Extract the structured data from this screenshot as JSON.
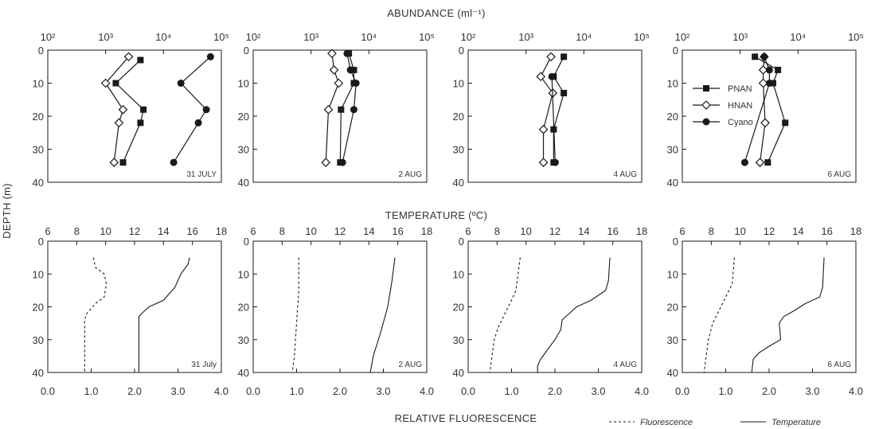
{
  "figure": {
    "abundance_title": "ABUNDANCE (ml⁻¹)",
    "temperature_title": "TEMPERATURE (ºC)",
    "fluorescence_title": "RELATIVE FLUORESCENCE",
    "depth_title": "DEPTH (m)"
  },
  "legend_abundance": [
    {
      "name": "PNAN",
      "marker": "square-filled"
    },
    {
      "name": "HNAN",
      "marker": "diamond-open"
    },
    {
      "name": "Cyano",
      "marker": "circle-filled"
    }
  ],
  "legend_profiles": [
    {
      "name": "Fluorescence",
      "style": "dashed"
    },
    {
      "name": "Temperature",
      "style": "solid"
    }
  ],
  "chart_data": [
    {
      "type": "scatter",
      "title": "31 JULY",
      "xscale": "log",
      "xlim": [
        100,
        100000
      ],
      "xticks": [
        "10²",
        "10³",
        "10⁴",
        "10⁵"
      ],
      "ylim": [
        0,
        40
      ],
      "yticks": [
        "0",
        "10",
        "20",
        "30",
        "40"
      ],
      "series": [
        {
          "name": "PNAN",
          "points": [
            [
              4000,
              3
            ],
            [
              1500,
              10
            ],
            [
              4500,
              18
            ],
            [
              4000,
              22
            ],
            [
              2000,
              34
            ]
          ]
        },
        {
          "name": "HNAN",
          "points": [
            [
              2500,
              2
            ],
            [
              1000,
              10
            ],
            [
              2000,
              18
            ],
            [
              1700,
              22
            ],
            [
              1400,
              34
            ]
          ]
        },
        {
          "name": "Cyano",
          "points": [
            [
              65000,
              2
            ],
            [
              20000,
              10
            ],
            [
              55000,
              18
            ],
            [
              40000,
              22
            ],
            [
              15000,
              34
            ]
          ]
        }
      ]
    },
    {
      "type": "scatter",
      "title": "2 AUG",
      "xscale": "log",
      "xlim": [
        100,
        100000
      ],
      "xticks": [
        "10²",
        "10³",
        "10⁴",
        "10⁵"
      ],
      "ylim": [
        0,
        40
      ],
      "yticks": [
        "0",
        "10",
        "20",
        "30",
        "40"
      ],
      "series": [
        {
          "name": "PNAN",
          "points": [
            [
              4500,
              1
            ],
            [
              5500,
              6
            ],
            [
              5500,
              10
            ],
            [
              3300,
              18
            ],
            [
              3200,
              34
            ]
          ]
        },
        {
          "name": "HNAN",
          "points": [
            [
              2300,
              1
            ],
            [
              2500,
              6
            ],
            [
              3000,
              10
            ],
            [
              2000,
              18
            ],
            [
              1800,
              34
            ]
          ]
        },
        {
          "name": "Cyano",
          "points": [
            [
              4200,
              1
            ],
            [
              4800,
              6
            ],
            [
              6000,
              10
            ],
            [
              5500,
              18
            ],
            [
              3500,
              34
            ]
          ]
        }
      ]
    },
    {
      "type": "scatter",
      "title": "4 AUG",
      "xscale": "log",
      "xlim": [
        100,
        100000
      ],
      "xticks": [
        "10²",
        "10³",
        "10⁴",
        "10⁵"
      ],
      "ylim": [
        0,
        40
      ],
      "yticks": [
        "0",
        "10",
        "20",
        "30",
        "40"
      ],
      "series": [
        {
          "name": "PNAN",
          "points": [
            [
              4500,
              2
            ],
            [
              3000,
              8
            ],
            [
              4500,
              13
            ],
            [
              3000,
              24
            ],
            [
              3000,
              34
            ]
          ]
        },
        {
          "name": "HNAN",
          "points": [
            [
              2700,
              2
            ],
            [
              1800,
              8
            ],
            [
              2900,
              13
            ],
            [
              2000,
              24
            ],
            [
              2000,
              34
            ]
          ]
        },
        {
          "name": "Cyano",
          "points": [
            [
              2800,
              8
            ],
            [
              3200,
              34
            ]
          ]
        }
      ]
    },
    {
      "type": "scatter",
      "title": "6 AUG",
      "xscale": "log",
      "xlim": [
        100,
        100000
      ],
      "xticks": [
        "10²",
        "10³",
        "10⁴",
        "10⁵"
      ],
      "ylim": [
        0,
        40
      ],
      "yticks": [
        "0",
        "10",
        "20",
        "30",
        "40"
      ],
      "series": [
        {
          "name": "PNAN",
          "points": [
            [
              1800,
              2
            ],
            [
              4500,
              6
            ],
            [
              3700,
              10
            ],
            [
              6000,
              22
            ],
            [
              3000,
              34
            ]
          ]
        },
        {
          "name": "HNAN",
          "points": [
            [
              2600,
              2
            ],
            [
              2500,
              6
            ],
            [
              2500,
              10
            ],
            [
              2700,
              22
            ],
            [
              2200,
              34
            ]
          ]
        },
        {
          "name": "Cyano",
          "points": [
            [
              2600,
              2
            ],
            [
              3200,
              6
            ],
            [
              3200,
              10
            ],
            [
              1200,
              34
            ]
          ]
        }
      ]
    },
    {
      "type": "line",
      "title": "31 July",
      "xlim_temperature": [
        6,
        18
      ],
      "xticks_temperature": [
        "6",
        "8",
        "10",
        "12",
        "14",
        "16",
        "18"
      ],
      "xlim_fluorescence": [
        0,
        4
      ],
      "xticks_fluorescence": [
        "0.0",
        "1.0",
        "2.0",
        "3.0",
        "4.0"
      ],
      "ylim": [
        0,
        40
      ],
      "yticks": [
        "0",
        "10",
        "20",
        "30",
        "40"
      ],
      "series": [
        {
          "name": "Temperature",
          "points": [
            [
              15.8,
              5
            ],
            [
              15.7,
              7
            ],
            [
              15.2,
              10
            ],
            [
              14.8,
              14
            ],
            [
              14,
              18
            ],
            [
              13,
              20
            ],
            [
              12.5,
              22
            ],
            [
              12.3,
              23
            ],
            [
              12.3,
              30
            ],
            [
              12.3,
              40
            ]
          ]
        },
        {
          "name": "Fluorescence",
          "points": [
            [
              1.05,
              5
            ],
            [
              1.1,
              8
            ],
            [
              1.3,
              10
            ],
            [
              1.35,
              13
            ],
            [
              1.3,
              17
            ],
            [
              1.1,
              19
            ],
            [
              0.9,
              22
            ],
            [
              0.85,
              24
            ],
            [
              0.85,
              30
            ],
            [
              0.85,
              40
            ]
          ]
        }
      ]
    },
    {
      "type": "line",
      "title": "2 AUG",
      "xlim_temperature": [
        6,
        18
      ],
      "xticks_temperature": [
        "6",
        "8",
        "10",
        "12",
        "14",
        "16",
        "18"
      ],
      "xlim_fluorescence": [
        0,
        4
      ],
      "xticks_fluorescence": [
        "0.0",
        "1.0",
        "2.0",
        "3.0",
        "4.0"
      ],
      "ylim": [
        0,
        40
      ],
      "yticks": [
        "0",
        "10",
        "20",
        "30",
        "40"
      ],
      "series": [
        {
          "name": "Temperature",
          "points": [
            [
              15.8,
              5
            ],
            [
              15.6,
              12
            ],
            [
              15.3,
              20
            ],
            [
              14.8,
              28
            ],
            [
              14.3,
              35
            ],
            [
              14.1,
              40
            ]
          ]
        },
        {
          "name": "Fluorescence",
          "points": [
            [
              1.05,
              5
            ],
            [
              1.05,
              15
            ],
            [
              1.0,
              25
            ],
            [
              0.95,
              35
            ],
            [
              0.9,
              40
            ]
          ]
        }
      ]
    },
    {
      "type": "line",
      "title": "4 AUG",
      "xlim_temperature": [
        6,
        18
      ],
      "xticks_temperature": [
        "6",
        "8",
        "10",
        "12",
        "14",
        "16",
        "18"
      ],
      "xlim_fluorescence": [
        0,
        4
      ],
      "xticks_fluorescence": [
        "0.0",
        "1.0",
        "2.0",
        "3.0",
        "4.0"
      ],
      "ylim": [
        0,
        40
      ],
      "yticks": [
        "0",
        "10",
        "20",
        "30",
        "40"
      ],
      "series": [
        {
          "name": "Temperature",
          "points": [
            [
              15.8,
              5
            ],
            [
              15.7,
              12
            ],
            [
              15.5,
              15
            ],
            [
              14.5,
              18
            ],
            [
              13.5,
              20
            ],
            [
              13,
              22
            ],
            [
              12.5,
              24
            ],
            [
              12.4,
              27
            ],
            [
              12,
              30
            ],
            [
              11.5,
              33
            ],
            [
              11,
              36
            ],
            [
              10.8,
              38
            ],
            [
              10.8,
              40
            ]
          ]
        },
        {
          "name": "Fluorescence",
          "points": [
            [
              1.2,
              5
            ],
            [
              1.15,
              10
            ],
            [
              1.1,
              15
            ],
            [
              1.0,
              18
            ],
            [
              0.85,
              22
            ],
            [
              0.7,
              26
            ],
            [
              0.6,
              30
            ],
            [
              0.55,
              35
            ],
            [
              0.5,
              40
            ]
          ]
        }
      ]
    },
    {
      "type": "line",
      "title": "6 AUG",
      "xlim_temperature": [
        6,
        18
      ],
      "xticks_temperature": [
        "6",
        "8",
        "10",
        "12",
        "14",
        "16",
        "18"
      ],
      "xlim_fluorescence": [
        0,
        4
      ],
      "xticks_fluorescence": [
        "0.0",
        "1.0",
        "2.0",
        "3.0",
        "4.0"
      ],
      "ylim": [
        0,
        40
      ],
      "yticks": [
        "0",
        "10",
        "20",
        "30",
        "40"
      ],
      "series": [
        {
          "name": "Temperature",
          "points": [
            [
              15.8,
              5
            ],
            [
              15.7,
              14
            ],
            [
              15.5,
              17
            ],
            [
              14.5,
              19
            ],
            [
              13.8,
              21
            ],
            [
              13,
              23
            ],
            [
              12.7,
              25
            ],
            [
              12.8,
              30
            ],
            [
              12,
              32
            ],
            [
              11.3,
              34
            ],
            [
              10.9,
              36
            ],
            [
              10.8,
              40
            ]
          ]
        },
        {
          "name": "Fluorescence",
          "points": [
            [
              1.2,
              5
            ],
            [
              1.15,
              13
            ],
            [
              1.0,
              17
            ],
            [
              0.85,
              21
            ],
            [
              0.7,
              25
            ],
            [
              0.6,
              30
            ],
            [
              0.55,
              35
            ],
            [
              0.5,
              40
            ]
          ]
        }
      ]
    }
  ]
}
